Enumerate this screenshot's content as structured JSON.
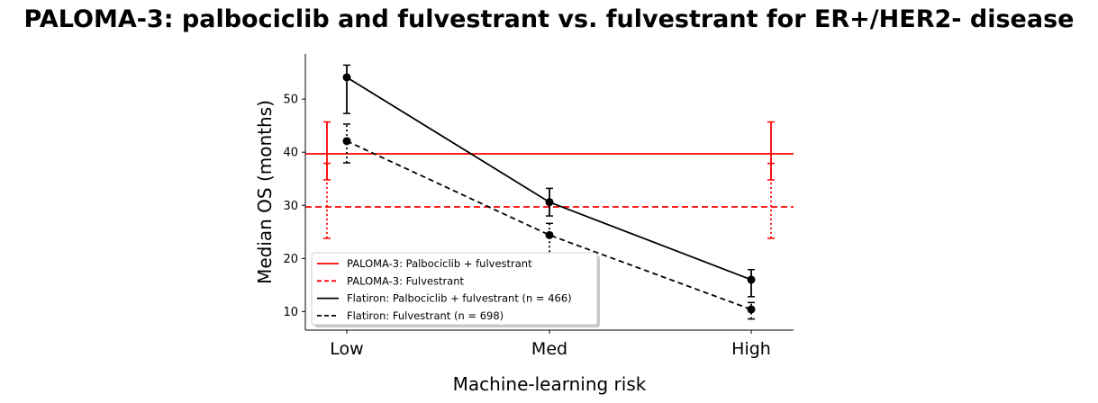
{
  "chart_data": {
    "type": "line",
    "title": "PALOMA-3: palbociclib and fulvestrant vs. fulvestrant for ER+/HER2- disease",
    "xlabel": "Machine-learning risk",
    "ylabel": "Median OS (months)",
    "categories": [
      "Low",
      "Med",
      "High"
    ],
    "yticks": [
      10,
      20,
      30,
      40,
      50
    ],
    "ylim": [
      6.5,
      58.5
    ],
    "grid": false,
    "legend_position": "lower-left",
    "reference_lines": [
      {
        "name": "PALOMA-3: Palbociclib + fulvestrant",
        "value": 39.7,
        "ci": [
          34.8,
          45.7
        ],
        "color": "#ff0000",
        "style": "solid"
      },
      {
        "name": "PALOMA-3: Fulvestrant",
        "value": 29.7,
        "ci": [
          23.8,
          37.9
        ],
        "color": "#ff0000",
        "style": "dashed"
      }
    ],
    "series": [
      {
        "name": "Flatiron: Palbociclib + fulvestrant (n = 466)",
        "color": "#000000",
        "style": "solid",
        "values": [
          54.1,
          30.6,
          16.0
        ],
        "ci_low": [
          47.3,
          28.0,
          12.8
        ],
        "ci_high": [
          56.4,
          33.2,
          17.9
        ]
      },
      {
        "name": "Flatiron: Fulvestrant (n = 698)",
        "color": "#000000",
        "style": "dashed",
        "values": [
          42.1,
          24.4,
          10.4
        ],
        "ci_low": [
          38.0,
          19.5,
          8.6
        ],
        "ci_high": [
          45.3,
          26.6,
          11.7
        ]
      }
    ]
  }
}
